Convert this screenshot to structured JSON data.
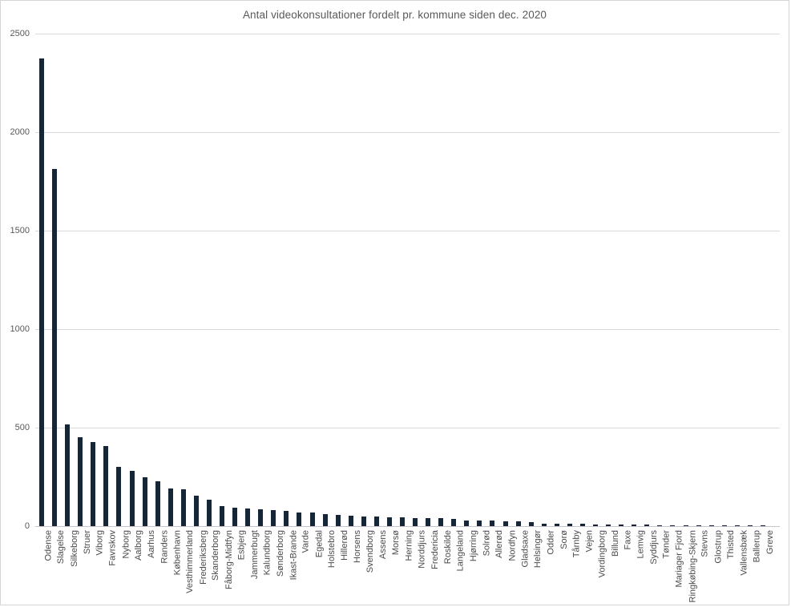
{
  "chart_data": {
    "type": "bar",
    "title": "Antal videokonsultationer fordelt pr. kommune siden dec. 2020",
    "xlabel": "",
    "ylabel": "",
    "ylim": [
      0,
      2500
    ],
    "yticks": [
      0,
      500,
      1000,
      1500,
      2000,
      2500
    ],
    "grid": true,
    "legend": false,
    "bar_color": "#142638",
    "gridline_color": "#d9d9d9",
    "title_color": "#595959",
    "tick_label_color": "#595959",
    "categories": [
      "Odense",
      "Slagelse",
      "Silkeborg",
      "Struer",
      "Viborg",
      "Favrskov",
      "Nyborg",
      "Aalborg",
      "Aarhus",
      "Randers",
      "København",
      "Vesthimmerland",
      "Frederiksberg",
      "Skanderborg",
      "Fåborg-Midtfyn",
      "Esbjerg",
      "Jammerbugt",
      "Kalundborg",
      "Sønderborg",
      "Ikast-Brande",
      "Varde",
      "Egedal",
      "Holstebro",
      "Hillerød",
      "Horsens",
      "Svendborg",
      "Assens",
      "Morsø",
      "Herning",
      "Norddjurs",
      "Fredericia",
      "Roskilde",
      "Langeland",
      "Hjørring",
      "Solrød",
      "Allerød",
      "Nordfyn",
      "Gladsaxe",
      "Helsingør",
      "Odder",
      "Sorø",
      "Tårnby",
      "Vejen",
      "Vordingborg",
      "Billund",
      "Faxe",
      "Lemvig",
      "Syddjurs",
      "Tønder",
      "Mariager Fjord",
      "Ringkøbing-Skjern",
      "Stevns",
      "Glostrup",
      "Thisted",
      "Vallensbæk",
      "Ballerup",
      "Greve"
    ],
    "values": [
      2375,
      1815,
      515,
      452,
      428,
      408,
      300,
      279,
      248,
      226,
      192,
      187,
      153,
      133,
      103,
      93,
      91,
      87,
      83,
      76,
      70,
      68,
      62,
      57,
      52,
      49,
      48,
      44,
      44,
      42,
      41,
      40,
      35,
      30,
      30,
      27,
      24,
      23,
      19,
      14,
      13,
      11,
      11,
      10,
      8,
      7,
      7,
      7,
      6,
      2,
      2,
      2,
      1,
      1,
      1,
      1,
      1
    ]
  }
}
